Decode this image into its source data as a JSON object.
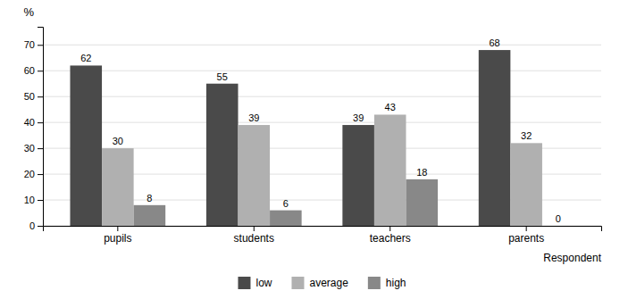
{
  "chart_data": {
    "type": "bar",
    "categories": [
      "pupils",
      "students",
      "teachers",
      "parents"
    ],
    "series": [
      {
        "name": "low",
        "color": "#4a4a4a",
        "values": [
          62,
          55,
          39,
          68
        ]
      },
      {
        "name": "average",
        "color": "#b0b0b0",
        "values": [
          30,
          39,
          43,
          32
        ]
      },
      {
        "name": "high",
        "color": "#888888",
        "values": [
          8,
          6,
          18,
          0
        ]
      }
    ],
    "ylabel": "%",
    "xlabel": "Respondent",
    "ylim": [
      0,
      77
    ],
    "yticks": [
      0,
      10,
      20,
      30,
      40,
      50,
      60,
      70
    ],
    "grid": true,
    "legend": "bottom",
    "data_labels": true
  }
}
